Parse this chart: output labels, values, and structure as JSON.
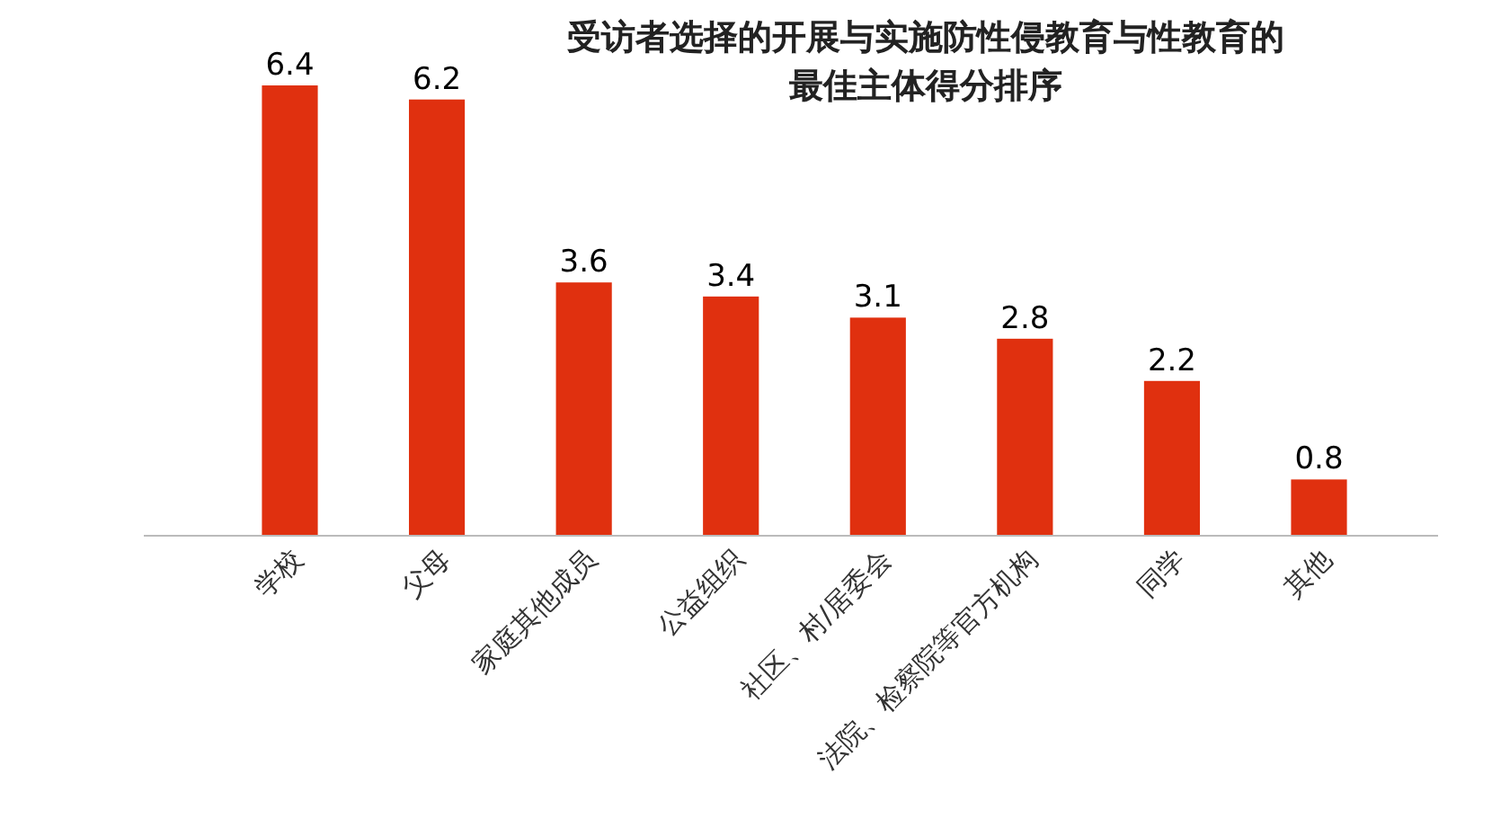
{
  "chart_data": {
    "type": "bar",
    "title": "受访者选择的开展与实施防性侵教育与性教育的最佳主体得分排序",
    "categories": [
      "学校",
      "父母",
      "家庭其他成员",
      "公益组织",
      "社区、村/居委会",
      "法院、检察院等官方机构",
      "同学",
      "其他"
    ],
    "values": [
      6.4,
      6.2,
      3.6,
      3.4,
      3.1,
      2.8,
      2.2,
      0.8
    ],
    "color": "#e0300f",
    "data_labels": true
  }
}
